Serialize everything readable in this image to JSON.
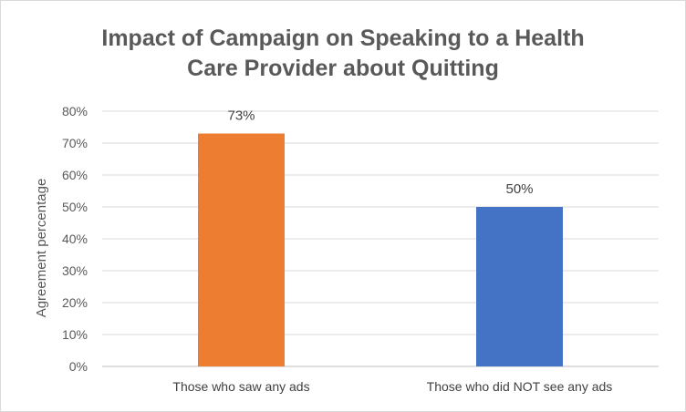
{
  "chart_data": {
    "type": "bar",
    "title_lines": [
      "Impact of Campaign on Speaking to a Health",
      "Care Provider about Quitting"
    ],
    "xlabel": "",
    "ylabel": "Agreement percentage",
    "categories": [
      "Those who saw any ads",
      "Those who did NOT see any ads"
    ],
    "values": [
      73,
      50
    ],
    "data_labels": [
      "73%",
      "50%"
    ],
    "bar_colors": [
      "#ED7D31",
      "#4472C4"
    ],
    "ylim": [
      0,
      80
    ],
    "yticks": [
      0,
      10,
      20,
      30,
      40,
      50,
      60,
      70,
      80
    ],
    "ytick_labels": [
      "0%",
      "10%",
      "20%",
      "30%",
      "40%",
      "50%",
      "60%",
      "70%",
      "80%"
    ],
    "grid": true,
    "legend": "none"
  }
}
